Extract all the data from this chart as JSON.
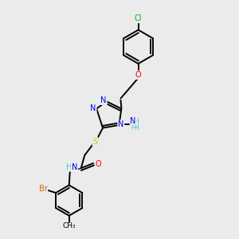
{
  "bg_color": "#ebebeb",
  "bond_color": "#000000",
  "atom_colors": {
    "N": "#0000ff",
    "O": "#ff0000",
    "S": "#cccc00",
    "Cl": "#00bb00",
    "Br": "#cc6600",
    "C": "#000000",
    "H": "#4cc8c8"
  },
  "figsize": [
    3.0,
    3.0
  ],
  "dpi": 100,
  "lw": 1.4,
  "fs": 7.0
}
